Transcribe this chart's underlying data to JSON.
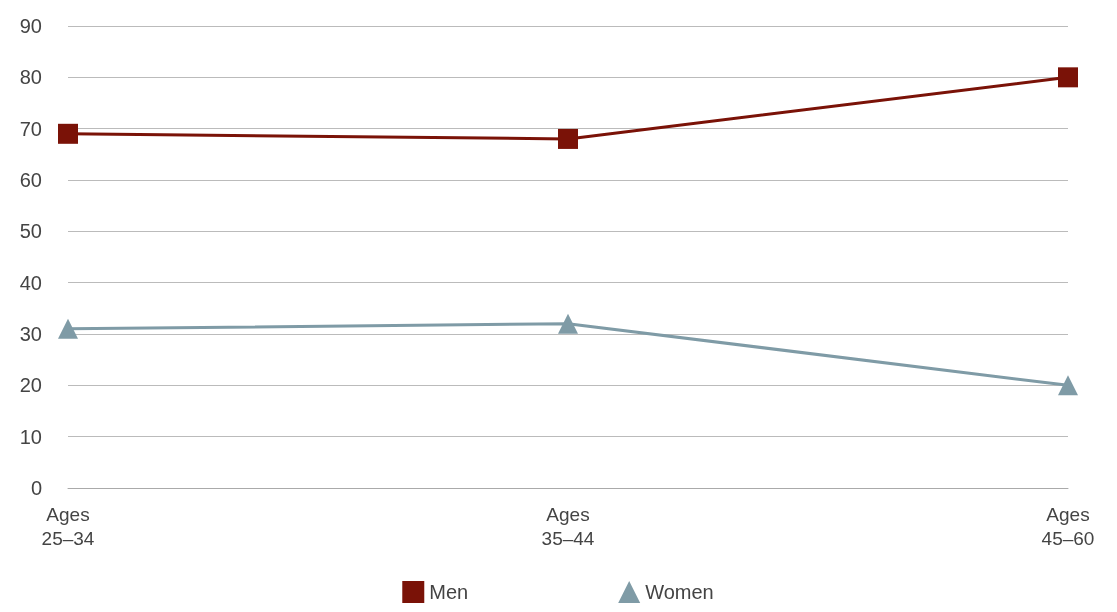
{
  "chart_data": {
    "type": "line",
    "categories": [
      "Ages\n25–34",
      "Ages\n35–44",
      "Ages\n45–60"
    ],
    "series": [
      {
        "name": "Men",
        "color": "#7a1207",
        "marker": "square",
        "values": [
          69,
          68,
          80
        ]
      },
      {
        "name": "Women",
        "color": "#7f9ba6",
        "marker": "triangle",
        "values": [
          31,
          32,
          20
        ]
      }
    ],
    "ylim": [
      0,
      90
    ],
    "yticks": [
      0,
      10,
      20,
      30,
      40,
      50,
      60,
      70,
      80,
      90
    ],
    "grid": "y",
    "legend": "bottom",
    "line_style": "solid"
  }
}
